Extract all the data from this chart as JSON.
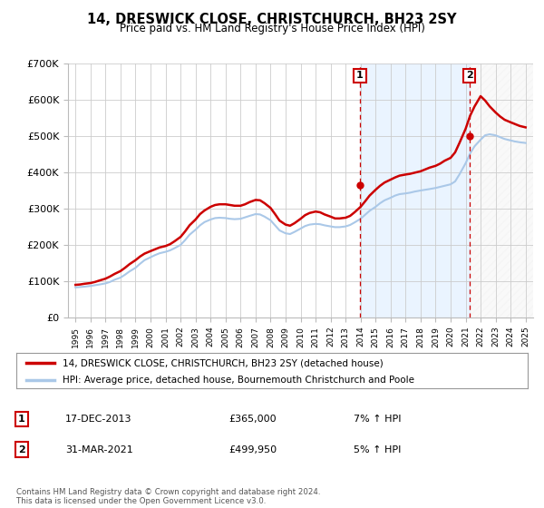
{
  "title": "14, DRESWICK CLOSE, CHRISTCHURCH, BH23 2SY",
  "subtitle": "Price paid vs. HM Land Registry's House Price Index (HPI)",
  "legend_line1": "14, DRESWICK CLOSE, CHRISTCHURCH, BH23 2SY (detached house)",
  "legend_line2": "HPI: Average price, detached house, Bournemouth Christchurch and Poole",
  "note": "Contains HM Land Registry data © Crown copyright and database right 2024.\nThis data is licensed under the Open Government Licence v3.0.",
  "annotation1_label": "1",
  "annotation1_date": "17-DEC-2013",
  "annotation1_price": "£365,000",
  "annotation1_hpi": "7% ↑ HPI",
  "annotation2_label": "2",
  "annotation2_date": "31-MAR-2021",
  "annotation2_price": "£499,950",
  "annotation2_hpi": "5% ↑ HPI",
  "hpi_color": "#aac8e8",
  "price_color": "#cc0000",
  "background_color": "#ffffff",
  "plot_bg_color": "#ffffff",
  "grid_color": "#cccccc",
  "shade_color": "#ddeeff",
  "sale1_x": 2013.96,
  "sale1_y": 365000,
  "sale2_x": 2021.25,
  "sale2_y": 499950,
  "ylim": [
    0,
    700000
  ],
  "xlim": [
    1994.5,
    2025.5
  ],
  "yticks": [
    0,
    100000,
    200000,
    300000,
    400000,
    500000,
    600000,
    700000
  ],
  "ytick_labels": [
    "£0",
    "£100K",
    "£200K",
    "£300K",
    "£400K",
    "£500K",
    "£600K",
    "£700K"
  ],
  "xticks": [
    1995,
    1996,
    1997,
    1998,
    1999,
    2000,
    2001,
    2002,
    2003,
    2004,
    2005,
    2006,
    2007,
    2008,
    2009,
    2010,
    2011,
    2012,
    2013,
    2014,
    2015,
    2016,
    2017,
    2018,
    2019,
    2020,
    2021,
    2022,
    2023,
    2024,
    2025
  ],
  "hpi_x": [
    1995.0,
    1995.3,
    1995.6,
    1996.0,
    1996.3,
    1996.6,
    1997.0,
    1997.3,
    1997.6,
    1998.0,
    1998.3,
    1998.6,
    1999.0,
    1999.3,
    1999.6,
    2000.0,
    2000.3,
    2000.6,
    2001.0,
    2001.3,
    2001.6,
    2002.0,
    2002.3,
    2002.6,
    2003.0,
    2003.3,
    2003.6,
    2004.0,
    2004.3,
    2004.6,
    2005.0,
    2005.3,
    2005.6,
    2006.0,
    2006.3,
    2006.6,
    2007.0,
    2007.3,
    2007.6,
    2008.0,
    2008.3,
    2008.6,
    2009.0,
    2009.3,
    2009.6,
    2010.0,
    2010.3,
    2010.6,
    2011.0,
    2011.3,
    2011.6,
    2012.0,
    2012.3,
    2012.6,
    2013.0,
    2013.3,
    2013.6,
    2014.0,
    2014.3,
    2014.6,
    2015.0,
    2015.3,
    2015.6,
    2016.0,
    2016.3,
    2016.6,
    2017.0,
    2017.3,
    2017.6,
    2018.0,
    2018.3,
    2018.6,
    2019.0,
    2019.3,
    2019.6,
    2020.0,
    2020.3,
    2020.6,
    2021.0,
    2021.3,
    2021.6,
    2022.0,
    2022.3,
    2022.6,
    2023.0,
    2023.3,
    2023.6,
    2024.0,
    2024.3,
    2024.6,
    2025.0
  ],
  "hpi_y": [
    83000,
    84000,
    85000,
    87000,
    89000,
    91000,
    94000,
    98000,
    104000,
    110000,
    118000,
    127000,
    137000,
    148000,
    158000,
    166000,
    172000,
    177000,
    181000,
    185000,
    191000,
    200000,
    213000,
    228000,
    242000,
    254000,
    263000,
    270000,
    274000,
    275000,
    274000,
    272000,
    271000,
    272000,
    276000,
    280000,
    285000,
    284000,
    278000,
    268000,
    254000,
    240000,
    232000,
    230000,
    236000,
    245000,
    252000,
    256000,
    258000,
    257000,
    254000,
    251000,
    249000,
    249000,
    251000,
    255000,
    262000,
    272000,
    283000,
    294000,
    305000,
    315000,
    323000,
    330000,
    336000,
    340000,
    342000,
    344000,
    347000,
    350000,
    352000,
    354000,
    357000,
    360000,
    363000,
    367000,
    375000,
    395000,
    425000,
    452000,
    472000,
    490000,
    502000,
    505000,
    502000,
    497000,
    492000,
    488000,
    485000,
    483000,
    481000
  ],
  "price_x": [
    1995.0,
    1995.3,
    1995.6,
    1996.0,
    1996.3,
    1996.6,
    1997.0,
    1997.3,
    1997.6,
    1998.0,
    1998.3,
    1998.6,
    1999.0,
    1999.3,
    1999.6,
    2000.0,
    2000.3,
    2000.6,
    2001.0,
    2001.3,
    2001.6,
    2002.0,
    2002.3,
    2002.6,
    2003.0,
    2003.3,
    2003.6,
    2004.0,
    2004.3,
    2004.6,
    2005.0,
    2005.3,
    2005.6,
    2006.0,
    2006.3,
    2006.6,
    2007.0,
    2007.3,
    2007.6,
    2008.0,
    2008.3,
    2008.6,
    2009.0,
    2009.3,
    2009.6,
    2010.0,
    2010.3,
    2010.6,
    2011.0,
    2011.3,
    2011.6,
    2012.0,
    2012.3,
    2012.6,
    2013.0,
    2013.3,
    2013.6,
    2014.0,
    2014.3,
    2014.6,
    2015.0,
    2015.3,
    2015.6,
    2016.0,
    2016.3,
    2016.6,
    2017.0,
    2017.3,
    2017.6,
    2018.0,
    2018.3,
    2018.6,
    2019.0,
    2019.3,
    2019.6,
    2020.0,
    2020.3,
    2020.6,
    2021.0,
    2021.3,
    2021.6,
    2022.0,
    2022.3,
    2022.6,
    2023.0,
    2023.3,
    2023.6,
    2024.0,
    2024.3,
    2024.6,
    2025.0
  ],
  "price_y": [
    90000,
    91000,
    93000,
    95000,
    98000,
    102000,
    107000,
    113000,
    120000,
    128000,
    137000,
    147000,
    158000,
    168000,
    176000,
    183000,
    188000,
    193000,
    197000,
    202000,
    210000,
    222000,
    237000,
    254000,
    270000,
    285000,
    295000,
    305000,
    310000,
    312000,
    312000,
    310000,
    308000,
    308000,
    312000,
    318000,
    324000,
    323000,
    315000,
    302000,
    285000,
    267000,
    256000,
    253000,
    260000,
    272000,
    282000,
    288000,
    292000,
    290000,
    284000,
    278000,
    273000,
    273000,
    275000,
    280000,
    290000,
    305000,
    320000,
    336000,
    352000,
    363000,
    372000,
    380000,
    386000,
    391000,
    394000,
    396000,
    399000,
    403000,
    408000,
    413000,
    418000,
    424000,
    432000,
    440000,
    455000,
    482000,
    520000,
    556000,
    582000,
    610000,
    598000,
    582000,
    565000,
    554000,
    545000,
    538000,
    533000,
    528000,
    524000
  ]
}
